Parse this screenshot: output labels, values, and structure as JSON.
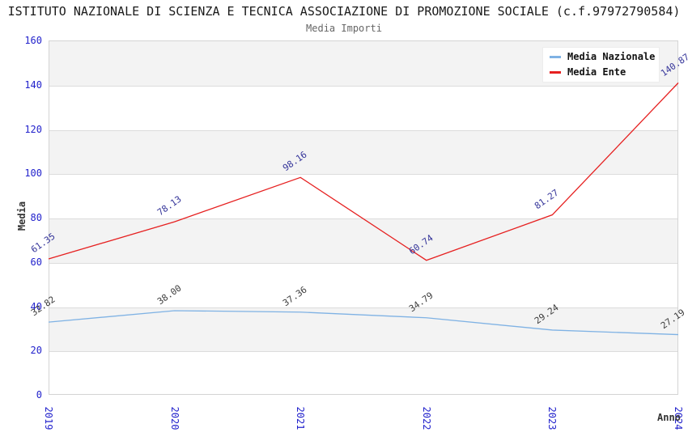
{
  "header": {
    "title": "ISTITUTO NAZIONALE DI SCIENZA E TECNICA ASSOCIAZIONE DI PROMOZIONE SOCIALE (c.f.97972790584)",
    "subtitle": "Media Importi"
  },
  "chart_data": {
    "type": "line",
    "title": "ISTITUTO NAZIONALE DI SCIENZA E TECNICA ASSOCIAZIONE DI PROMOZIONE SOCIALE (c.f.97972790584)",
    "subtitle": "Media Importi",
    "xlabel": "Anno",
    "ylabel": "Media",
    "categories": [
      "2019",
      "2020",
      "2021",
      "2022",
      "2023",
      "2024"
    ],
    "series": [
      {
        "name": "Media Nazionale",
        "color": "#7fb2e4",
        "label_color": "#3d3d3d",
        "values": [
          32.82,
          38.0,
          37.36,
          34.79,
          29.24,
          27.19
        ],
        "labels": [
          "32.82",
          "38.00",
          "37.36",
          "34.79",
          "29.24",
          "27.19"
        ]
      },
      {
        "name": "Media Ente",
        "color": "#e62020",
        "label_color": "#333399",
        "values": [
          61.35,
          78.13,
          98.16,
          60.74,
          81.27,
          140.87
        ],
        "labels": [
          "61.35",
          "78.13",
          "98.16",
          "60.74",
          "81.27",
          "140.87"
        ]
      }
    ],
    "ylim": [
      0,
      160
    ],
    "ytick_step": 20,
    "yticks": [
      0,
      20,
      40,
      60,
      80,
      100,
      120,
      140,
      160
    ],
    "legend_position": "top-right",
    "grid": "horizontal-bands",
    "band_pattern": "alternating gray/white every 20 units, gray on 20-40, 60-80, 100-120, 140-160"
  },
  "colors": {
    "tick_label": "#2222cc",
    "band": "#f3f3f3",
    "grid_line": "#dcdcdc",
    "plot_border": "#d4d4d4",
    "title": "#1a1a1a",
    "subtitle": "#666666",
    "axis_label": "#333333",
    "legend_text": "#111111"
  }
}
